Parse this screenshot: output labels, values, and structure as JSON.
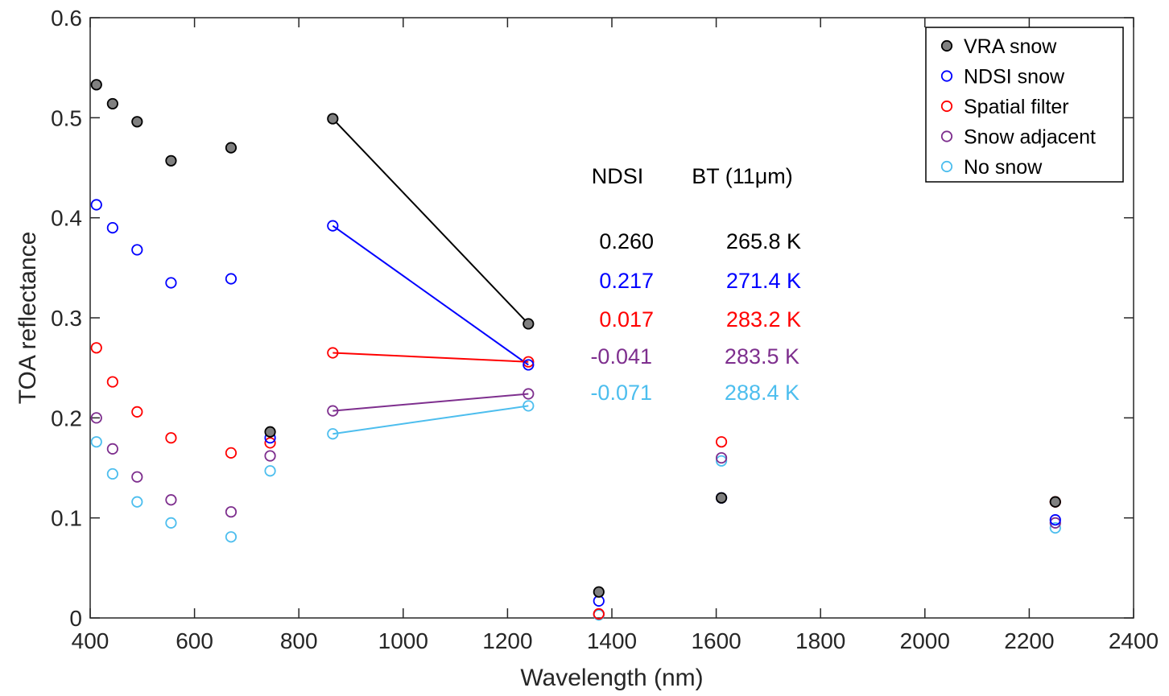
{
  "chart_data": {
    "type": "scatter",
    "title": "",
    "xlabel": "Wavelength (nm)",
    "ylabel": "TOA reflectance",
    "xlim": [
      400,
      2400
    ],
    "ylim": [
      0,
      0.6
    ],
    "xticks": [
      400,
      600,
      800,
      1000,
      1200,
      1400,
      1600,
      1800,
      2000,
      2200,
      2400
    ],
    "yticks": [
      0,
      0.1,
      0.2,
      0.3,
      0.4,
      0.5,
      0.6
    ],
    "xtick_labels": [
      "400",
      "600",
      "800",
      "1000",
      "1200",
      "1400",
      "1600",
      "1800",
      "2000",
      "2200",
      "2400"
    ],
    "ytick_labels": [
      "0",
      "0.1",
      "0.2",
      "0.3",
      "0.4",
      "0.5",
      "0.6"
    ],
    "grid": false,
    "legend_position": "top-right",
    "x": [
      412,
      443,
      490,
      555,
      670,
      745,
      865,
      1240,
      1375,
      1610,
      2250
    ],
    "series": [
      {
        "name": "VRA snow",
        "color": "#000000",
        "fill": "#808080",
        "values": [
          0.533,
          0.514,
          0.496,
          0.457,
          0.47,
          0.186,
          0.499,
          0.294,
          0.026,
          0.12,
          0.116
        ]
      },
      {
        "name": "NDSI snow",
        "color": "#0000ff",
        "fill": "none",
        "values": [
          0.413,
          0.39,
          0.368,
          0.335,
          0.339,
          0.18,
          0.392,
          0.253,
          0.017,
          0.12,
          0.098
        ]
      },
      {
        "name": "Spatial filter",
        "color": "#ff0000",
        "fill": "none",
        "values": [
          0.27,
          0.236,
          0.206,
          0.18,
          0.165,
          0.175,
          0.265,
          0.256,
          0.004,
          0.176,
          0.116
        ]
      },
      {
        "name": "Snow adjacent",
        "color": "#7e2f8e",
        "fill": "none",
        "values": [
          0.2,
          0.169,
          0.141,
          0.118,
          0.106,
          0.162,
          0.207,
          0.224,
          0.004,
          0.16,
          0.095
        ]
      },
      {
        "name": "No snow",
        "color": "#4dbeee",
        "fill": "none",
        "values": [
          0.176,
          0.144,
          0.116,
          0.095,
          0.081,
          0.147,
          0.184,
          0.212,
          0.003,
          0.157,
          0.09
        ]
      }
    ],
    "connecting_lines": {
      "from_x": 865,
      "to_x": 1240
    },
    "annotations": {
      "ndsi_header": "NDSI",
      "bt_header": "BT (11μm)",
      "rows": [
        {
          "ndsi": "0.260",
          "bt": "265.8 K",
          "color": "#000000"
        },
        {
          "ndsi": "0.217",
          "bt": "271.4 K",
          "color": "#0000ff"
        },
        {
          "ndsi": "0.017",
          "bt": "283.2 K",
          "color": "#ff0000"
        },
        {
          "ndsi": "-0.041",
          "bt": "283.5 K",
          "color": "#7e2f8e"
        },
        {
          "ndsi": "-0.071",
          "bt": "288.4 K",
          "color": "#4dbeee"
        }
      ]
    }
  }
}
